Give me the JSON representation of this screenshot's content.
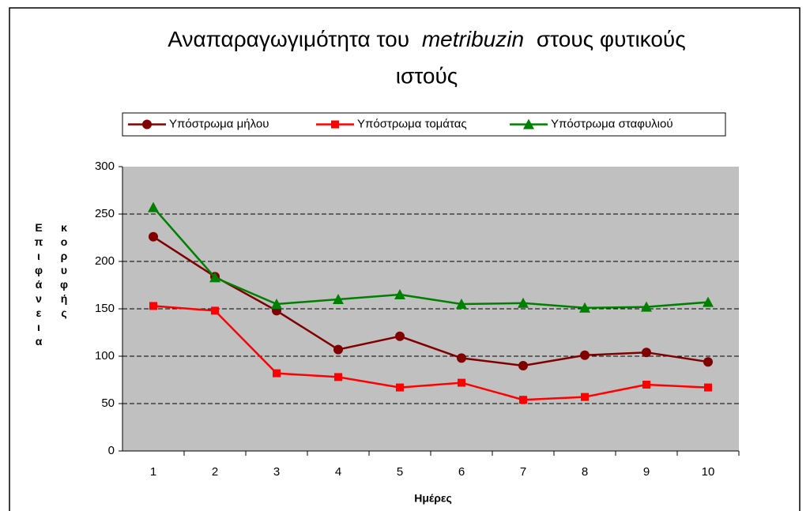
{
  "chart_data": {
    "type": "line",
    "title": [
      "Αναπαραγωγιμότητα του",
      "metribuzin",
      "στους φυτικούς",
      "ιστούς"
    ],
    "x_label": "Ημέρες",
    "y_label": "Επιφάνεια κορυφής",
    "categories": [
      "1",
      "2",
      "3",
      "4",
      "5",
      "6",
      "7",
      "8",
      "9",
      "10"
    ],
    "series": [
      {
        "name": "Υπόστρωμα μήλου",
        "color": "#800000",
        "marker": "circle",
        "values": [
          226,
          184,
          148,
          107,
          121,
          98,
          90,
          101,
          104,
          94
        ]
      },
      {
        "name": "Υπόστρωμα τομάτας",
        "color": "#ff0000",
        "marker": "square",
        "values": [
          153,
          148,
          82,
          78,
          67,
          72,
          54,
          57,
          70,
          67
        ]
      },
      {
        "name": "Υπόστρωμα σταφυλιού",
        "color": "#008000",
        "marker": "triangle",
        "values": [
          257,
          183,
          155,
          160,
          165,
          155,
          156,
          151,
          152,
          157
        ]
      }
    ],
    "ylim": [
      0,
      300
    ],
    "yticks": [
      0,
      50,
      100,
      150,
      200,
      250,
      300
    ],
    "grid": true,
    "legend": "top"
  }
}
